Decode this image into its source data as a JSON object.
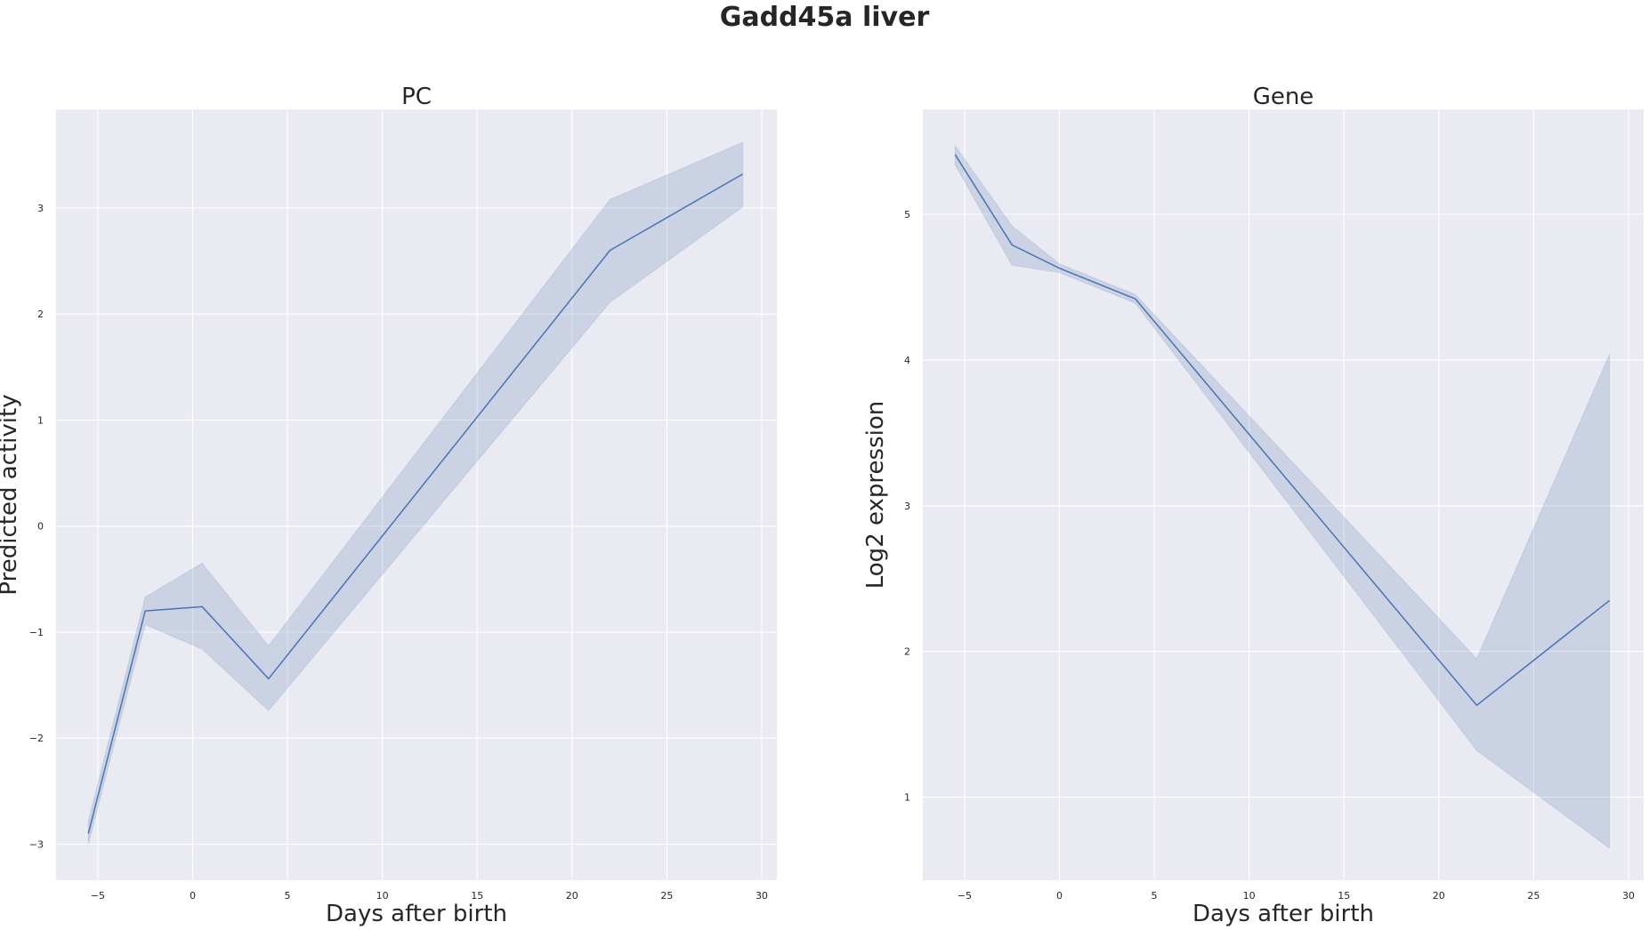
{
  "figure": {
    "title": "Gadd45a liver"
  },
  "colors": {
    "axes_background": "#EAEAF2",
    "grid": "#FFFFFF",
    "line": "#4C72B0",
    "band": "#4C72B0",
    "text": "#262626"
  },
  "chart_data": [
    {
      "type": "line",
      "title": "PC",
      "xlabel": "Days after birth",
      "ylabel": "Predicted activity",
      "xlim": [
        -7.2,
        30.8
      ],
      "ylim": [
        -3.34,
        3.93
      ],
      "grid": true,
      "xticks": [
        -5,
        0,
        5,
        10,
        15,
        20,
        25,
        30
      ],
      "xtick_labels": [
        "−5",
        "0",
        "5",
        "10",
        "15",
        "20",
        "25",
        "30"
      ],
      "yticks": [
        -3,
        -2,
        -1,
        0,
        1,
        2,
        3
      ],
      "ytick_labels": [
        "−3",
        "−2",
        "−1",
        "0",
        "1",
        "2",
        "3"
      ],
      "series": [
        {
          "x": [
            -5.5,
            -2.5,
            0.5,
            4,
            22,
            29
          ],
          "y": [
            -2.9,
            -0.8,
            -0.76,
            -1.44,
            2.6,
            3.32
          ],
          "ci_lower": [
            -3.0,
            -0.93,
            -1.16,
            -1.74,
            2.11,
            3.01
          ],
          "ci_upper": [
            -2.78,
            -0.67,
            -0.35,
            -1.13,
            3.08,
            3.62
          ]
        }
      ]
    },
    {
      "type": "line",
      "title": "Gene",
      "xlabel": "Days after birth",
      "ylabel": "Log2 expression",
      "xlim": [
        -7.2,
        30.8
      ],
      "ylim": [
        0.43,
        5.72
      ],
      "grid": true,
      "xticks": [
        -5,
        0,
        5,
        10,
        15,
        20,
        25,
        30
      ],
      "xtick_labels": [
        "−5",
        "0",
        "5",
        "10",
        "15",
        "20",
        "25",
        "30"
      ],
      "yticks": [
        1,
        2,
        3,
        4,
        5
      ],
      "ytick_labels": [
        "1",
        "2",
        "3",
        "4",
        "5"
      ],
      "series": [
        {
          "x": [
            -5.5,
            -2.5,
            0,
            4,
            22,
            29
          ],
          "y": [
            5.41,
            4.79,
            4.63,
            4.42,
            1.63,
            2.35
          ],
          "ci_lower": [
            5.34,
            4.65,
            4.6,
            4.39,
            1.32,
            0.65
          ],
          "ci_upper": [
            5.47,
            4.92,
            4.66,
            4.45,
            1.95,
            4.04
          ]
        }
      ]
    }
  ]
}
